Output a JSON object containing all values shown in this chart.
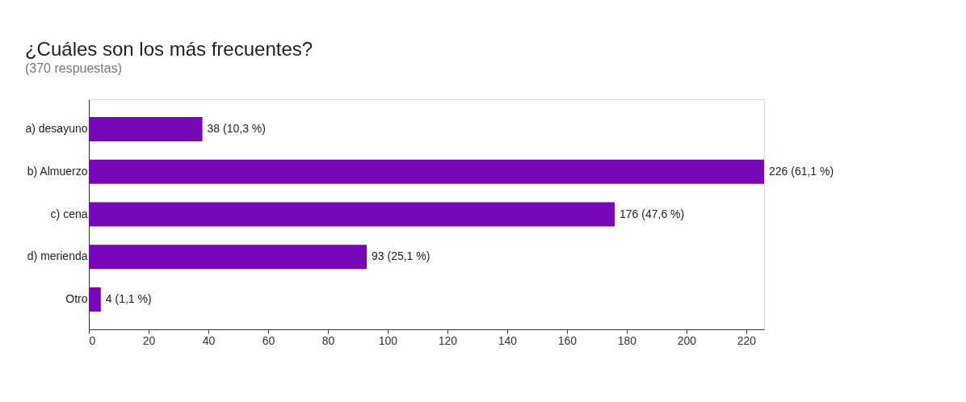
{
  "chart_data": {
    "type": "bar",
    "orientation": "horizontal",
    "title": "¿Cuáles son los más frecuentes?",
    "subtitle": "(370 respuestas)",
    "categories": [
      "a) desayuno",
      "b) Almuerzo",
      "c) cena",
      "d) merienda",
      "Otro"
    ],
    "values": [
      38,
      226,
      176,
      93,
      4
    ],
    "color": "#7607b8",
    "value_labels": [
      "38 (10,3 %)",
      "226 (61,1 %)",
      "176 (47,6 %)",
      "93 (25,1 %)",
      "4 (1,1 %)"
    ],
    "xlim": [
      0,
      226
    ],
    "xticks": [
      0,
      20,
      40,
      60,
      80,
      100,
      120,
      140,
      160,
      180,
      200,
      220
    ],
    "grid": false
  }
}
